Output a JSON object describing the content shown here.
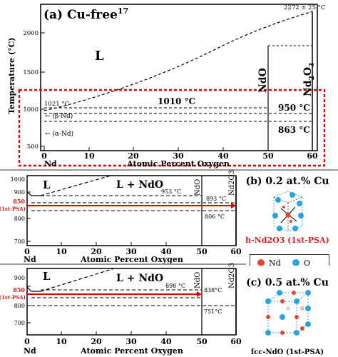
{
  "panel_a": {
    "title_prefix": "(a) Cu-free",
    "title_sup": "17",
    "top_temp": "2272 ± 25 °C",
    "region_L": "L",
    "ylabel": "Temperature (°C)",
    "y_ticks": [
      "2000",
      "1500",
      "1000",
      "500"
    ],
    "x_ticks": [
      "0",
      "10",
      "20",
      "30",
      "40",
      "50",
      "60"
    ],
    "x_start": "Nd",
    "xlabel": "Atomic Percent Oxygen",
    "phase_NdO": "NdO",
    "phase_Nd2O3_base": "Nd",
    "phase_Nd2O3_sub1": "2",
    "phase_Nd2O3_mid": "O",
    "phase_Nd2O3_sub2": "3",
    "temp_1021": "1021 °C",
    "temp_1010": "1010 °C",
    "temp_950": "950 °C",
    "temp_863": "863 °C",
    "beta_Nd": "← (β-Nd)",
    "alpha_Nd": "← (α-Nd)"
  },
  "panel_b": {
    "region_L": "L",
    "region_LNdO": "L + NdO",
    "y_ticks": [
      "1000",
      "900",
      "800",
      "700"
    ],
    "psa_value": "850",
    "psa_label": "(1st-PSA)",
    "x_ticks": [
      "0",
      "10",
      "20",
      "30",
      "40",
      "50",
      "60"
    ],
    "x_start": "Nd",
    "xlabel": "Atomic Percent Oxygen",
    "temp_953": "953 °C",
    "temp_893": "893 °C",
    "temp_806": "806 °C",
    "phase_NdO": "NdO",
    "phase_Nd2O3": "Nd2O3",
    "cu_label": "(b) 0.2 at.% Cu",
    "crystal_label": "h-Nd2O3 (1st-PSA)"
  },
  "legend": {
    "nd_label": "Nd",
    "o_label": "O",
    "nd_color": "#e8452c",
    "o_color": "#2aa3e0"
  },
  "panel_c": {
    "region_L": "L",
    "region_LNdO": "L + NdO",
    "y_ticks": [
      "900",
      "800",
      "700"
    ],
    "psa_value": "850",
    "psa_label": "(1st-PSA)",
    "x_ticks": [
      "0",
      "10",
      "20",
      "30",
      "40",
      "50",
      "60"
    ],
    "x_start": "Nd",
    "xlabel": "Atomic Percent Oxygen",
    "temp_898": "898 °C",
    "temp_838": "838°C",
    "temp_751": "751°C",
    "phase_NdO": "NdO",
    "phase_Nd2O3": "Nd2O3",
    "cu_label": "(c) 0.5 at.% Cu",
    "crystal_label": "fcc-NdO (1st-PSA)"
  },
  "colors": {
    "highlight_red": "#e00000",
    "psa_red": "#d42020"
  }
}
